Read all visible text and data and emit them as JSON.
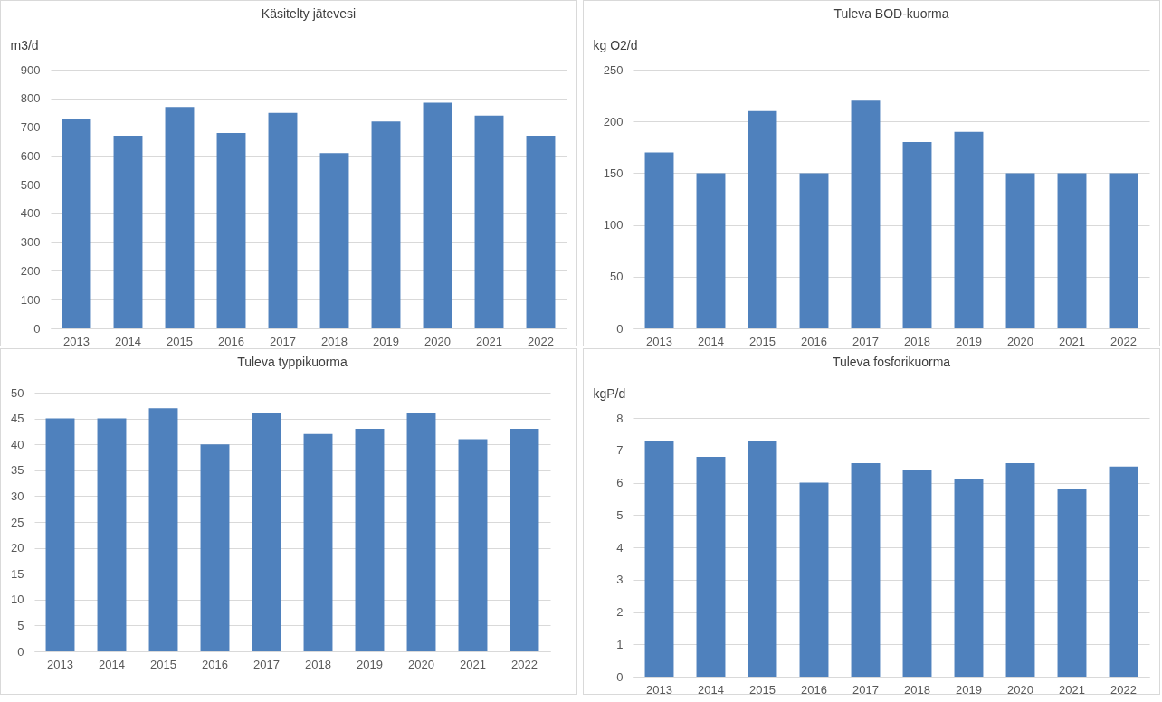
{
  "chart_data": [
    {
      "type": "bar",
      "title": "Käsitelty jätevesi",
      "ylabel": "m3/d",
      "categories": [
        "2013",
        "2014",
        "2015",
        "2016",
        "2017",
        "2018",
        "2019",
        "2020",
        "2021",
        "2022"
      ],
      "values": [
        730,
        670,
        770,
        680,
        750,
        610,
        720,
        785,
        740,
        670
      ],
      "color": "#4f81bd",
      "ylim": [
        0,
        900
      ],
      "yticks": [
        0,
        100,
        200,
        300,
        400,
        500,
        600,
        700,
        800,
        900
      ],
      "grid": "y"
    },
    {
      "type": "bar",
      "title": "Tuleva BOD-kuorma",
      "ylabel": "kg O2/d",
      "categories": [
        "2013",
        "2014",
        "2015",
        "2016",
        "2017",
        "2018",
        "2019",
        "2020",
        "2021",
        "2022"
      ],
      "values": [
        170,
        150,
        210,
        150,
        220,
        180,
        190,
        150,
        150,
        150
      ],
      "color": "#4f81bd",
      "ylim": [
        0,
        250
      ],
      "yticks": [
        0,
        50,
        100,
        150,
        200,
        250
      ],
      "grid": "y"
    },
    {
      "type": "bar",
      "title": "Tuleva typpikuorma",
      "categories": [
        "2013",
        "2014",
        "2015",
        "2016",
        "2017",
        "2018",
        "2019",
        "2020",
        "2021",
        "2022"
      ],
      "values": [
        45,
        45,
        47,
        40,
        46,
        42,
        43,
        46,
        41,
        43
      ],
      "color": "#4f81bd",
      "ylim": [
        0,
        50
      ],
      "yticks": [
        0,
        5,
        10,
        15,
        20,
        25,
        30,
        35,
        40,
        45,
        50
      ],
      "grid": "y"
    },
    {
      "type": "bar",
      "title": "Tuleva fosforikuorma",
      "ylabel": "kgP/d",
      "categories": [
        "2013",
        "2014",
        "2015",
        "2016",
        "2017",
        "2018",
        "2019",
        "2020",
        "2021",
        "2022"
      ],
      "values": [
        7.3,
        6.8,
        7.3,
        6.0,
        6.6,
        6.4,
        6.1,
        6.6,
        5.8,
        6.5
      ],
      "color": "#4f81bd",
      "ylim": [
        0,
        8
      ],
      "yticks": [
        0,
        1,
        2,
        3,
        4,
        5,
        6,
        7,
        8
      ],
      "grid": "y"
    }
  ]
}
